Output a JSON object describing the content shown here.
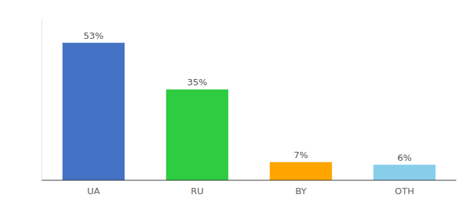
{
  "chart_data": {
    "type": "bar",
    "categories": [
      "UA",
      "RU",
      "BY",
      "OTH"
    ],
    "values": [
      53,
      35,
      7,
      6
    ],
    "value_labels": [
      "53%",
      "35%",
      "7%",
      "6%"
    ],
    "colors": [
      "#4472C4",
      "#2ECC40",
      "#FFA500",
      "#87CEEB"
    ],
    "ylim": [
      0,
      62
    ],
    "data_labels": true,
    "tick_labels": "x"
  }
}
